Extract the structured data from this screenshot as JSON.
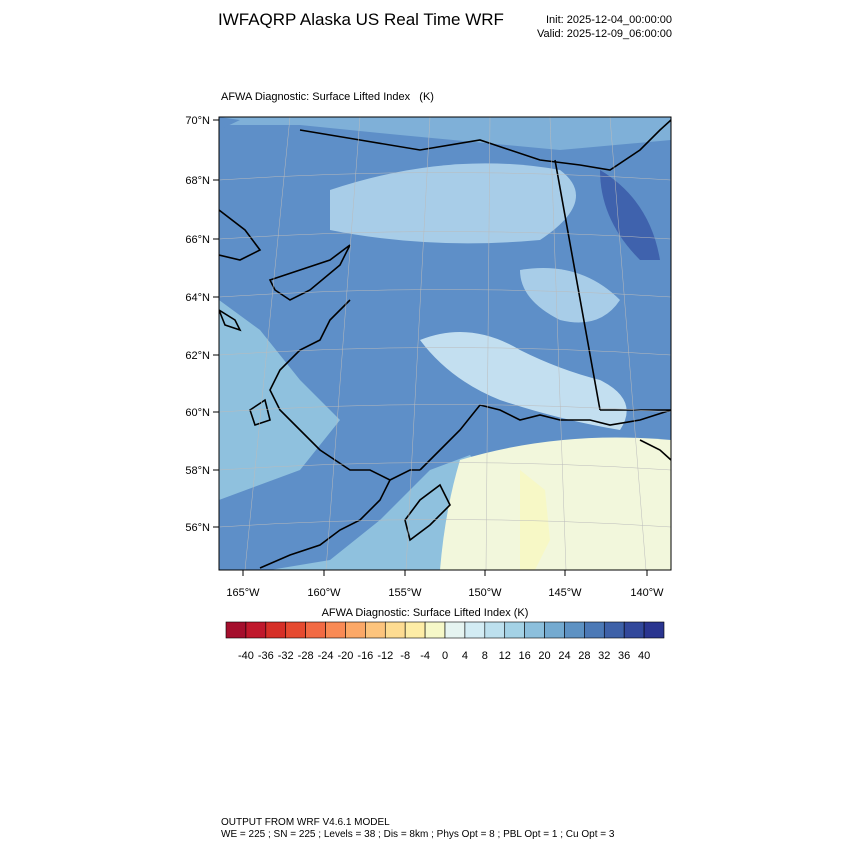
{
  "header": {
    "title": "IWFAQRP Alaska US Real Time WRF",
    "init": "Init: 2025-12-04_00:00:00",
    "valid": "Valid: 2025-12-09_06:00:00"
  },
  "map": {
    "title": "AFWA Diagnostic: Surface Lifted Index   (K)",
    "lat_labels": [
      "70°N",
      "68°N",
      "66°N",
      "64°N",
      "62°N",
      "60°N",
      "58°N",
      "56°N"
    ],
    "lon_labels": [
      "165°W",
      "160°W",
      "155°W",
      "150°W",
      "145°W",
      "140°W"
    ]
  },
  "colorbar": {
    "title": "AFWA Diagnostic: Surface Lifted Index  (K)",
    "ticks": [
      -40,
      -36,
      -32,
      -28,
      -24,
      -20,
      -16,
      -12,
      -8,
      -4,
      0,
      4,
      8,
      12,
      16,
      20,
      24,
      28,
      32,
      36,
      40
    ],
    "colors": [
      "#a50f2d",
      "#c0182c",
      "#d62f27",
      "#e64a30",
      "#f26a44",
      "#f98a55",
      "#fca867",
      "#fdc47d",
      "#fedc92",
      "#feeda6",
      "#f6f8c8",
      "#e6f4f1",
      "#d3ecf4",
      "#bde0ee",
      "#a4d2e6",
      "#8cbfdc",
      "#74aad0",
      "#5e92c3",
      "#4c79b6",
      "#3e61a8",
      "#32489b",
      "#2a3590"
    ]
  },
  "footer": {
    "line1": "OUTPUT FROM WRF V4.6.1 MODEL",
    "line2": "WE = 225 ; SN = 225 ; Levels = 38 ; Dis = 8km ; Phys Opt = 8 ; PBL Opt = 1 ; Cu Opt = 3"
  }
}
